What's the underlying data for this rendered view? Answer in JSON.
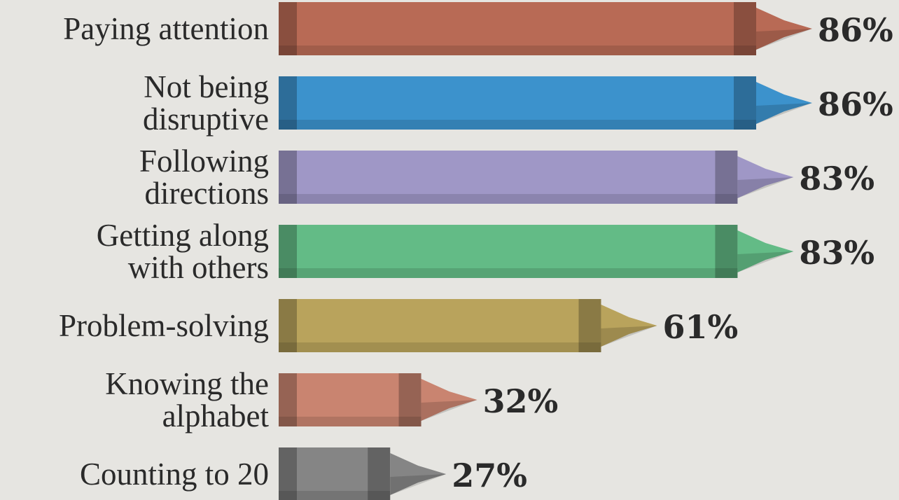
{
  "chart_data": {
    "type": "crayon-bar",
    "categories": [
      "Paying attention",
      "Not being\ndisruptive",
      "Following\ndirections",
      "Getting along\nwith others",
      "Problem-solving",
      "Knowing the\nalphabet",
      "Counting to 20"
    ],
    "values": [
      86,
      86,
      83,
      83,
      61,
      32,
      27
    ],
    "value_labels": [
      "86%",
      "86%",
      "83%",
      "83%",
      "61%",
      "32%",
      "27%"
    ],
    "colors": [
      "#b86a55",
      "#3c92cc",
      "#9f97c6",
      "#63bb86",
      "#b9a35c",
      "#c98470",
      "#858585"
    ]
  }
}
